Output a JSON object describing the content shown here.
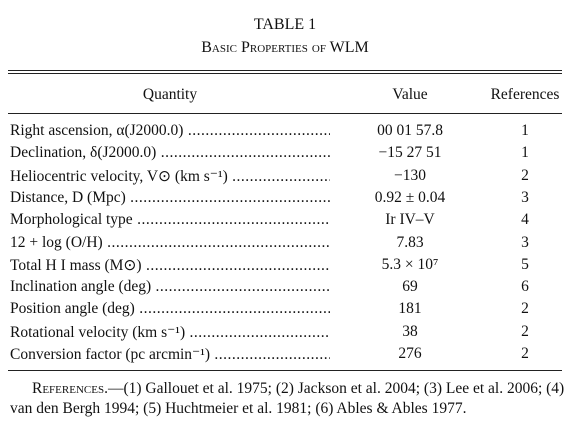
{
  "header": {
    "title": "TABLE 1",
    "subtitle": "Basic Properties of WLM"
  },
  "table": {
    "columns": [
      "Quantity",
      "Value",
      "References"
    ],
    "rows": [
      [
        "Right ascension, α(J2000.0)",
        "00 01 57.8",
        "1"
      ],
      [
        "Declination, δ(J2000.0)",
        "−15 27 51",
        "1"
      ],
      [
        "Heliocentric velocity, V⊙ (km s⁻¹)",
        "−130",
        "2"
      ],
      [
        "Distance, D (Mpc)",
        "0.92 ± 0.04",
        "3"
      ],
      [
        "Morphological type",
        "Ir IV–V",
        "4"
      ],
      [
        "12 + log (O/H)",
        "7.83",
        "3"
      ],
      [
        "Total H I mass (M⊙)",
        "5.3 × 10⁷",
        "5"
      ],
      [
        "Inclination angle (deg)",
        "69",
        "6"
      ],
      [
        "Position angle (deg)",
        "181",
        "2"
      ],
      [
        "Rotational velocity (km s⁻¹)",
        "38",
        "2"
      ],
      [
        "Conversion factor (pc arcmin⁻¹)",
        "276",
        "2"
      ]
    ]
  },
  "notes": {
    "label": "References.",
    "text": "—(1) Gallouet et al. 1975; (2) Jackson et al. 2004; (3) Lee et al. 2006; (4) van den Bergh 1994; (5) Huchtmeier et al. 1981; (6) Ables & Ables 1977."
  }
}
